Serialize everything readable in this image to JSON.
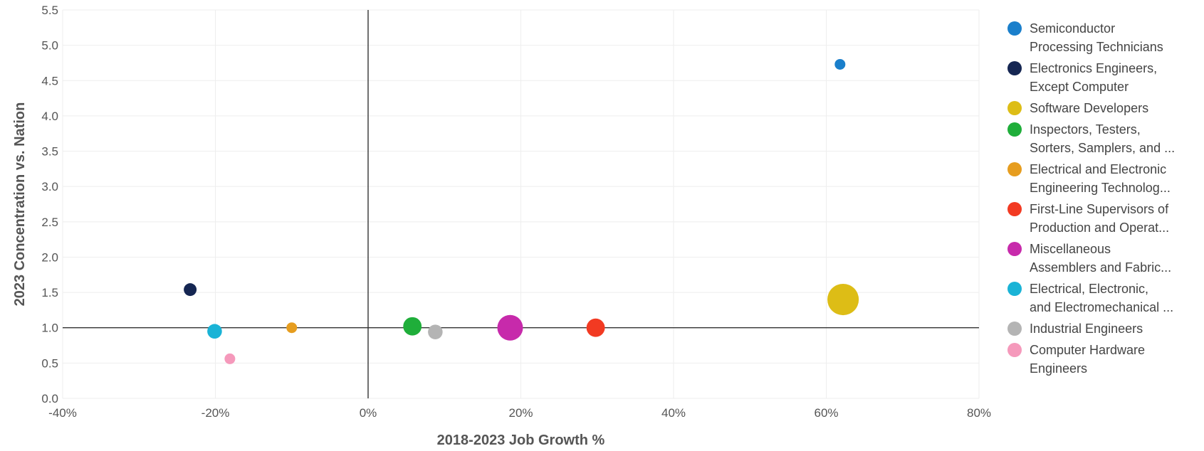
{
  "chart_data": {
    "type": "scatter",
    "title": "",
    "xlabel": "2018-2023 Job Growth %",
    "ylabel": "2023 Concentration vs. Nation",
    "xlim": [
      -40,
      80
    ],
    "ylim": [
      0,
      5.5
    ],
    "x_ticks": [
      "-40%",
      "-20%",
      "0%",
      "20%",
      "40%",
      "60%",
      "80%"
    ],
    "y_ticks": [
      "0.0",
      "0.5",
      "1.0",
      "1.5",
      "2.0",
      "2.5",
      "3.0",
      "3.5",
      "4.0",
      "4.5",
      "5.0",
      "5.5"
    ],
    "grid": true,
    "reference_lines": {
      "x": 0,
      "y": 1.0
    },
    "legend_position": "right",
    "series": [
      {
        "name": "Semiconductor Processing Technicians",
        "legend_lines": [
          "Semiconductor",
          "Processing Technicians"
        ],
        "color": "#1a7fcb",
        "x": 61.8,
        "y": 4.73,
        "size": 1.0
      },
      {
        "name": "Electronics Engineers, Except Computer",
        "legend_lines": [
          "Electronics Engineers,",
          "Except Computer"
        ],
        "color": "#152652",
        "x": -23.3,
        "y": 1.54,
        "size": 1.3
      },
      {
        "name": "Software Developers",
        "legend_lines": [
          "Software Developers"
        ],
        "color": "#ddbd16",
        "x": 62.2,
        "y": 1.4,
        "size": 5.7
      },
      {
        "name": "Inspectors, Testers, Sorters, Samplers, and ...",
        "legend_lines": [
          "Inspectors, Testers,",
          "Sorters, Samplers, and ..."
        ],
        "color": "#1fae3a",
        "x": 5.8,
        "y": 1.02,
        "size": 2.3
      },
      {
        "name": "Electrical and Electronic Engineering Technolog...",
        "legend_lines": [
          "Electrical and Electronic",
          "Engineering Technolog..."
        ],
        "color": "#e69d1f",
        "x": -10.0,
        "y": 1.0,
        "size": 1.0
      },
      {
        "name": "First-Line Supervisors of Production and Operat...",
        "legend_lines": [
          "First-Line Supervisors of",
          "Production and Operat..."
        ],
        "color": "#f23a22",
        "x": 29.8,
        "y": 1.0,
        "size": 2.3
      },
      {
        "name": "Miscellaneous Assemblers and Fabric...",
        "legend_lines": [
          "Miscellaneous",
          "Assemblers and Fabric..."
        ],
        "color": "#c72aab",
        "x": 18.6,
        "y": 1.0,
        "size": 4.0
      },
      {
        "name": "Electrical, Electronic, and Electromechanical ...",
        "legend_lines": [
          "Electrical, Electronic,",
          "and Electromechanical ..."
        ],
        "color": "#1ab3d6",
        "x": -20.1,
        "y": 0.95,
        "size": 1.6
      },
      {
        "name": "Industrial Engineers",
        "legend_lines": [
          "Industrial Engineers"
        ],
        "color": "#b4b4b4",
        "x": 8.8,
        "y": 0.94,
        "size": 1.6
      },
      {
        "name": "Computer Hardware Engineers",
        "legend_lines": [
          "Computer Hardware",
          "Engineers"
        ],
        "color": "#f599bb",
        "x": -18.1,
        "y": 0.56,
        "size": 1.0
      }
    ]
  }
}
